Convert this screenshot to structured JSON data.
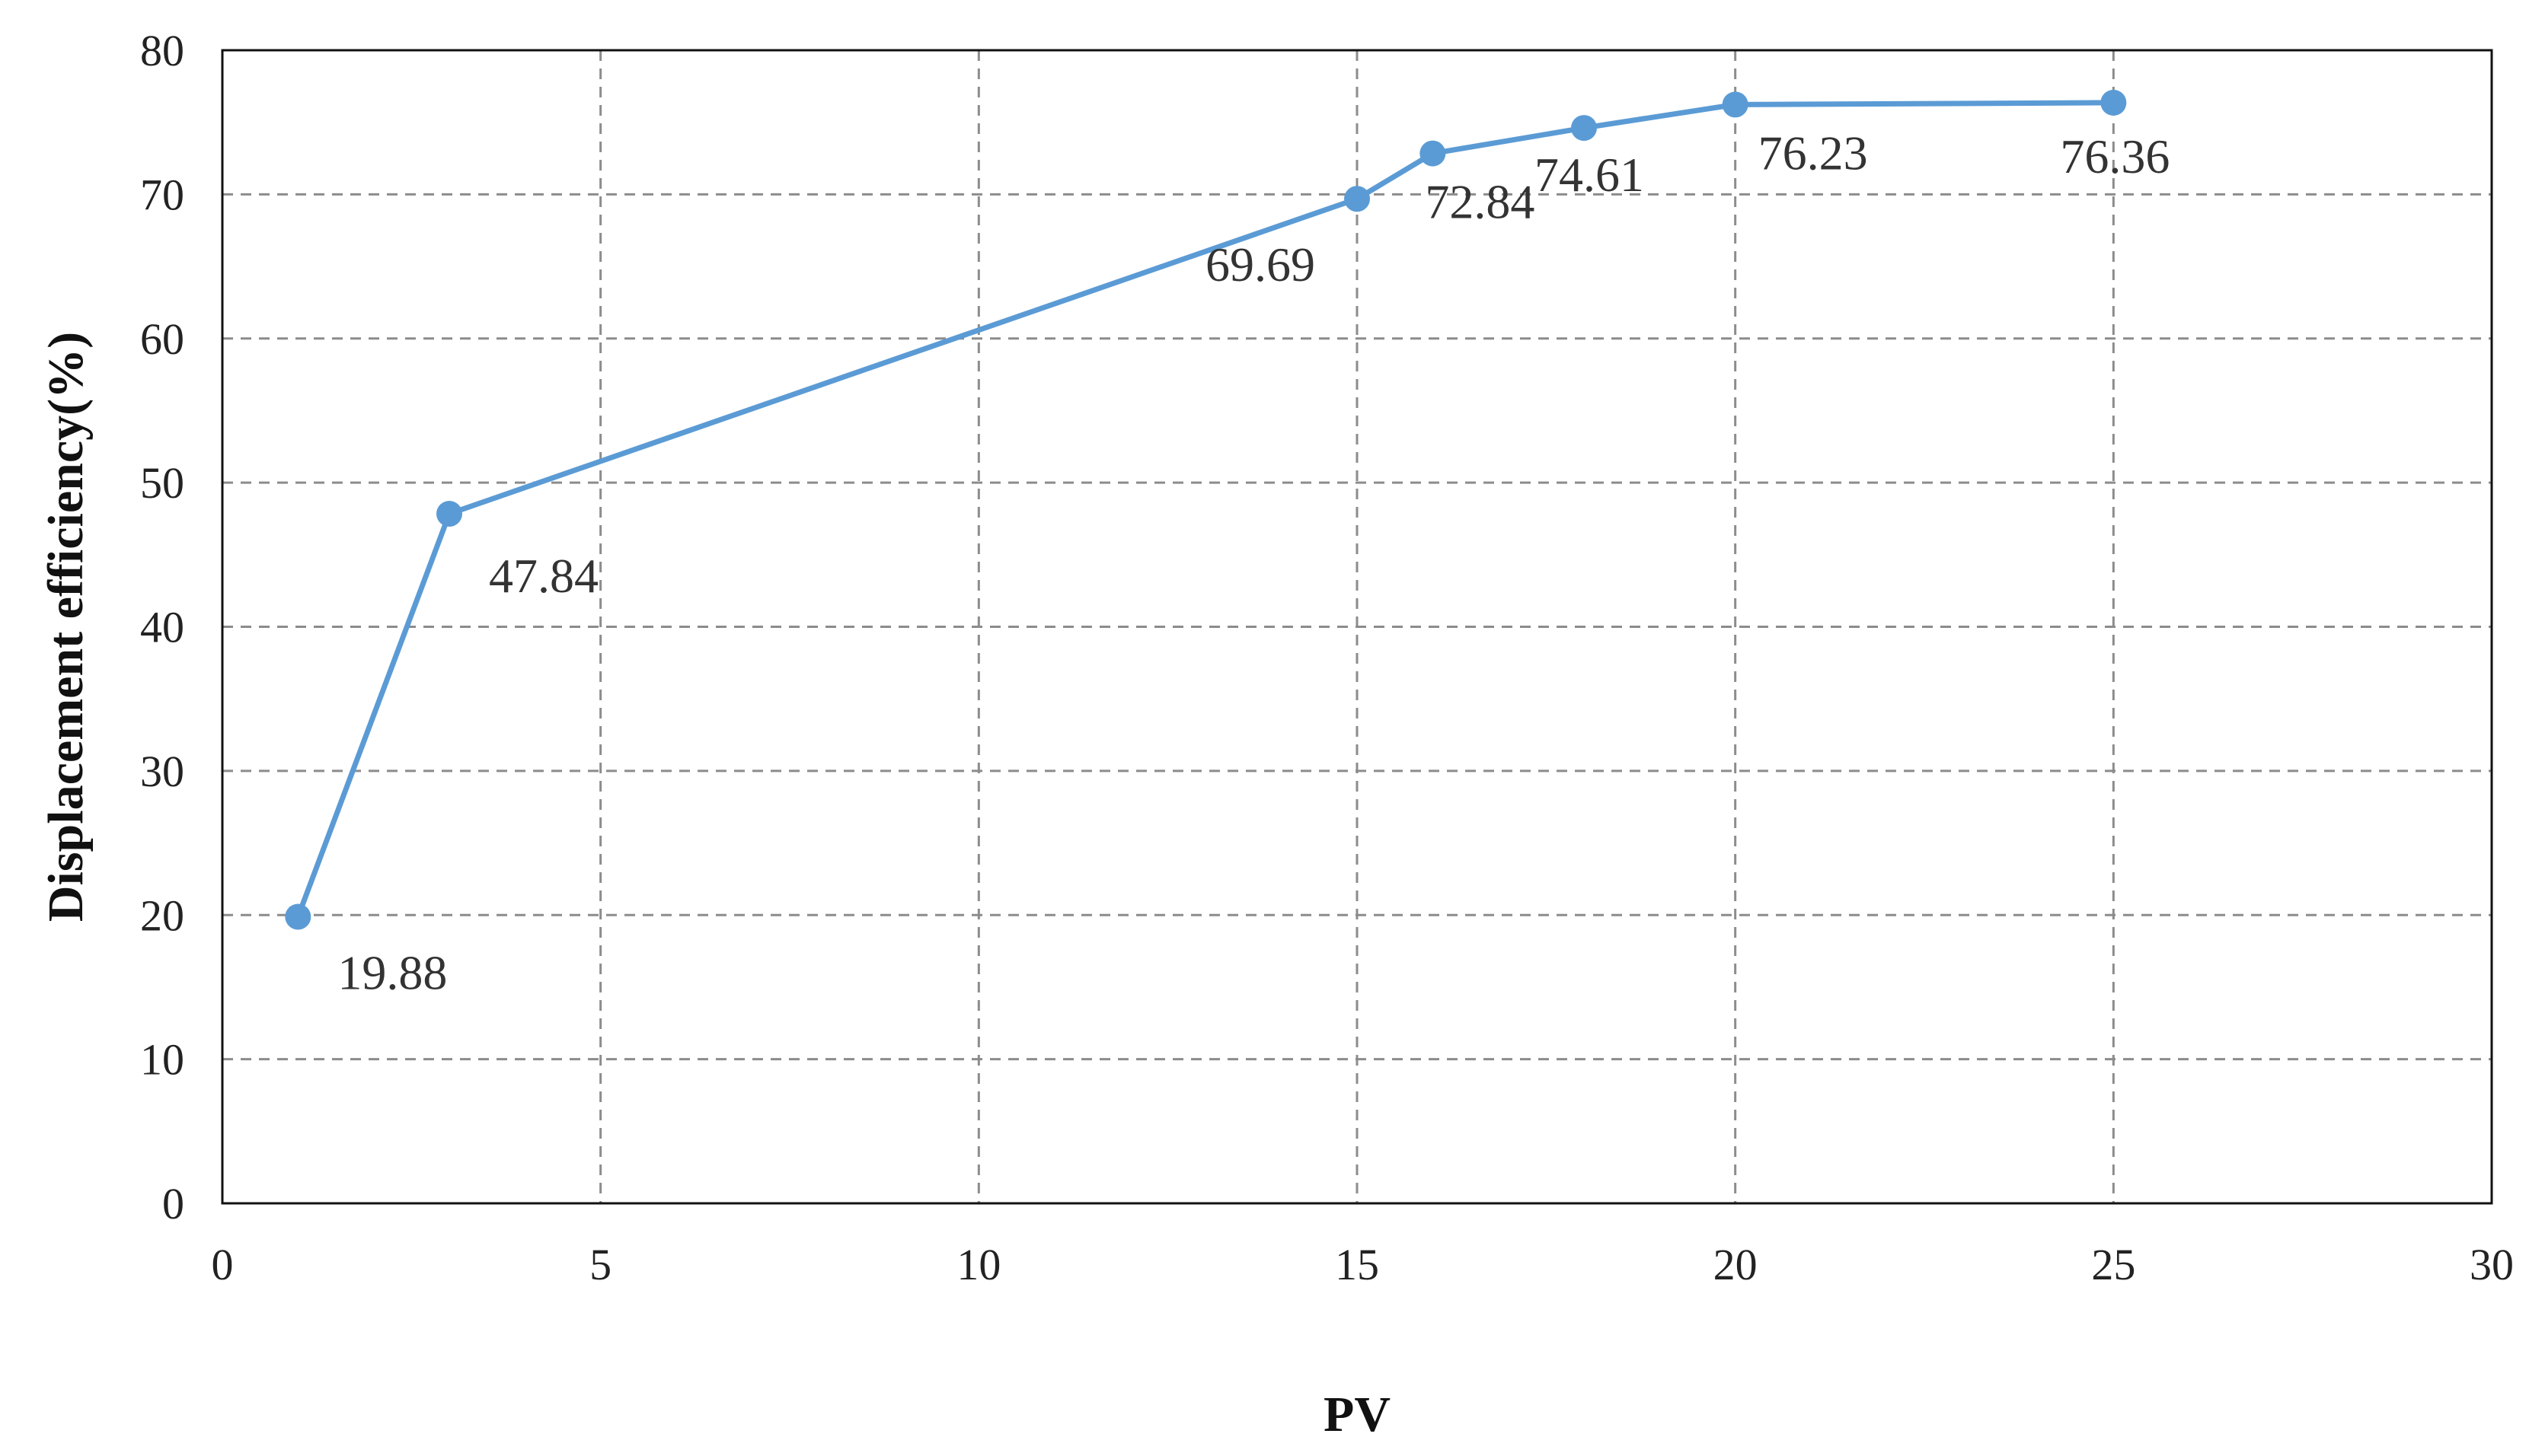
{
  "chart_data": {
    "type": "line",
    "title": "",
    "xlabel": "PV",
    "ylabel": "Displacement efficiency(%)",
    "xlim": [
      0,
      30
    ],
    "ylim": [
      0,
      80
    ],
    "xticks": [
      0,
      5,
      10,
      15,
      20,
      25,
      30
    ],
    "yticks": [
      0,
      10,
      20,
      30,
      40,
      50,
      60,
      70,
      80
    ],
    "grid": true,
    "legend": "none",
    "series": [
      {
        "color": "#5b9bd5",
        "points": [
          {
            "x": 1,
            "y": 19.88,
            "label": "19.88"
          },
          {
            "x": 3,
            "y": 47.84,
            "label": "47.84"
          },
          {
            "x": 15,
            "y": 69.69,
            "label": "69.69"
          },
          {
            "x": 16,
            "y": 72.84,
            "label": "72.84"
          },
          {
            "x": 18,
            "y": 74.61,
            "label": "74.61"
          },
          {
            "x": 20,
            "y": 76.23,
            "label": "76.23"
          },
          {
            "x": 25,
            "y": 76.36,
            "label": "76.36"
          }
        ]
      }
    ]
  }
}
